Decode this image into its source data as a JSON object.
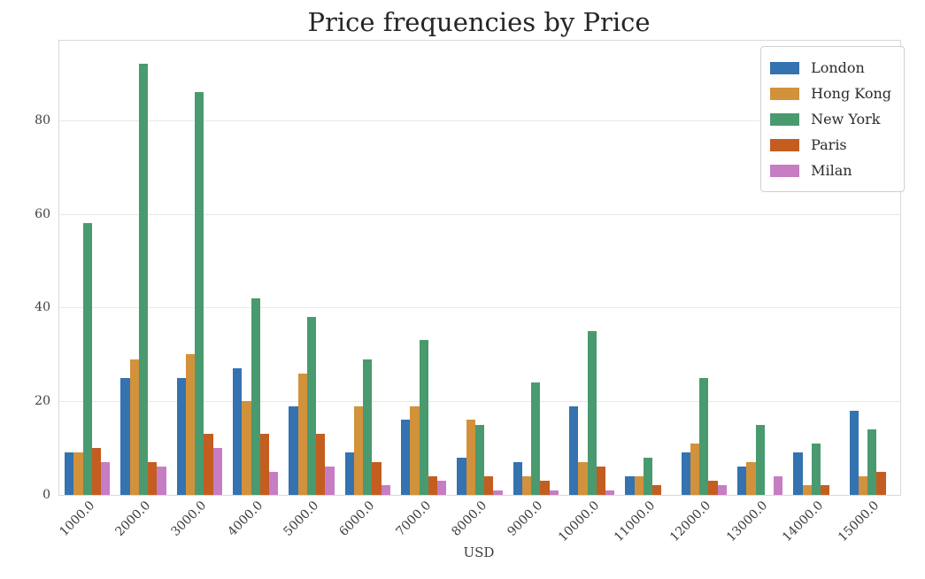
{
  "chart_data": {
    "type": "bar",
    "title": "Price frequencies by Price",
    "xlabel": "USD",
    "ylabel": "",
    "categories": [
      "1000.0",
      "2000.0",
      "3000.0",
      "4000.0",
      "5000.0",
      "6000.0",
      "7000.0",
      "8000.0",
      "9000.0",
      "10000.0",
      "11000.0",
      "12000.0",
      "13000.0",
      "14000.0",
      "15000.0"
    ],
    "series": [
      {
        "name": "London",
        "color": "#3472B0",
        "values": [
          9,
          25,
          25,
          27,
          19,
          9,
          16,
          8,
          7,
          19,
          4,
          9,
          6,
          9,
          18
        ]
      },
      {
        "name": "Hong Kong",
        "color": "#D2913B",
        "values": [
          9,
          29,
          30,
          20,
          26,
          19,
          19,
          16,
          4,
          7,
          4,
          11,
          7,
          2,
          4
        ]
      },
      {
        "name": "New York",
        "color": "#4A9A6F",
        "values": [
          58,
          92,
          86,
          42,
          38,
          29,
          33,
          15,
          24,
          35,
          8,
          25,
          15,
          11,
          14
        ]
      },
      {
        "name": "Paris",
        "color": "#C45D20",
        "values": [
          10,
          7,
          13,
          13,
          13,
          7,
          4,
          4,
          3,
          6,
          2,
          3,
          0,
          2,
          5
        ]
      },
      {
        "name": "Milan",
        "color": "#C67DC4",
        "values": [
          7,
          6,
          10,
          5,
          6,
          2,
          3,
          1,
          1,
          1,
          0,
          2,
          4,
          0,
          0
        ]
      }
    ],
    "yticks": [
      0,
      20,
      40,
      60,
      80
    ],
    "ylim": [
      0,
      97
    ],
    "grid": "horizontal",
    "legend_position": "upper right",
    "background": "#ffffff",
    "text_color": "#3d3d3d"
  }
}
